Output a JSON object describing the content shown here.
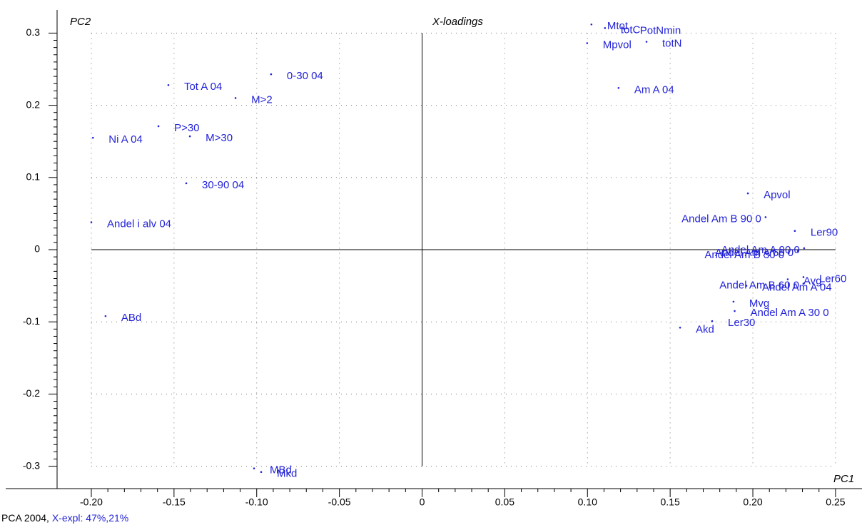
{
  "chart_data": {
    "type": "scatter",
    "title": "X-loadings",
    "x_label": "PC1",
    "y_label": "PC2",
    "footer": "PCA 2004,",
    "explained": "X-expl: 47%,21%",
    "color": "#2323d8",
    "grid": true,
    "xlim": [
      -0.2207,
      0.266
    ],
    "ylim": [
      -0.331,
      0.332
    ],
    "xticks": [
      {
        "value": -0.2,
        "label": "-0.20"
      },
      -0.15,
      {
        "value": -0.1,
        "label": "-0.10"
      },
      -0.05,
      0,
      0.05,
      {
        "value": 0.1,
        "label": "0.10"
      },
      0.15,
      {
        "value": 0.2,
        "label": "0.20"
      },
      0.25
    ],
    "yticks": [
      -0.3,
      -0.2,
      -0.1,
      0,
      0.1,
      0.2,
      0.3
    ],
    "labels": [
      "Tot A 04",
      "0-30 04",
      "M>2",
      "P>30",
      "Ni A 04",
      "M>30",
      "30-90 04",
      "Andel i alv 04",
      "ABd",
      "MBd",
      "Mkd",
      "Mtot",
      "totC",
      "PotNmin",
      "totN",
      "Mpvol",
      "Am A 04",
      "Apvol",
      "Andel Am B 90 0",
      "Ler90",
      "Andel Am A 90 0",
      "Andel Am B 30 0",
      "Andel Am A 60 0",
      "Ler60",
      "Andel Am B 60 0",
      "Avg",
      "Andel Am A 04",
      "Mvg",
      "Andel Am A 30 0",
      "Ler30",
      "Akd"
    ],
    "x": [
      -0.1534,
      -0.0913,
      -0.1128,
      -0.1594,
      -0.199,
      -0.1404,
      -0.1426,
      -0.2,
      -0.1914,
      -0.1016,
      -0.0973,
      0.1024,
      0.1106,
      0.1222,
      0.1357,
      0.0998,
      0.1188,
      0.197,
      0.2077,
      0.2254,
      0.231,
      0.2216,
      0.2272,
      0.2306,
      0.2306,
      0.2211,
      0.1961,
      0.1883,
      0.189,
      0.1754,
      0.156
    ],
    "values": [
      0.228,
      0.243,
      0.21,
      0.171,
      0.155,
      0.157,
      0.092,
      0.038,
      -0.092,
      -0.303,
      -0.308,
      0.312,
      0.307,
      0.306,
      0.288,
      0.286,
      0.224,
      0.078,
      0.045,
      0.026,
      0.002,
      -0.005,
      -0.002,
      -0.038,
      -0.047,
      -0.041,
      -0.05,
      -0.072,
      -0.085,
      -0.099,
      -0.108
    ]
  }
}
